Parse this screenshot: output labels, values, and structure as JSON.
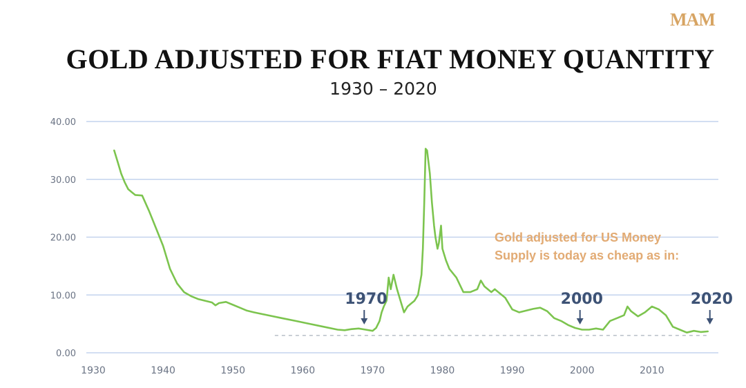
{
  "logo": {
    "text": "MAM"
  },
  "colors": {
    "line": "#7cc44e",
    "grid": "#c3d3ee",
    "axis_text": "#6a7384",
    "annotation": "#e2ab74",
    "marker": "#3d5275",
    "reference": "#b8bec8"
  },
  "chart_data": {
    "type": "line",
    "title": "GOLD ADJUSTED FOR FIAT MONEY QUANTITY",
    "subtitle": "1930 – 2020",
    "xlabel": "",
    "ylabel": "",
    "xlim": [
      1929,
      2019.5
    ],
    "ylim": [
      0,
      40
    ],
    "grid": true,
    "legend": "none",
    "x_ticks": [
      1930,
      1940,
      1950,
      1960,
      1970,
      1980,
      1990,
      2000,
      2010
    ],
    "y_ticks": [
      0,
      10,
      20,
      30,
      40
    ],
    "y_tick_labels": [
      "0.00",
      "10.00",
      "20.00",
      "30.00",
      "40.00"
    ],
    "series": [
      {
        "name": "",
        "x": [
          1933.0,
          1933.5,
          1934.0,
          1934.5,
          1935.0,
          1935.5,
          1936.0,
          1937.0,
          1938.0,
          1939.0,
          1940.0,
          1941.0,
          1942.0,
          1943.0,
          1944.0,
          1945.0,
          1946.0,
          1947.0,
          1947.5,
          1948.0,
          1949.0,
          1950.0,
          1951.0,
          1952.0,
          1953.0,
          1955.0,
          1957.0,
          1959.0,
          1961.0,
          1963.0,
          1965.0,
          1966.0,
          1967.0,
          1968.0,
          1969.0,
          1970.0,
          1970.5,
          1971.0,
          1971.3,
          1971.6,
          1972.0,
          1972.3,
          1972.6,
          1973.0,
          1973.5,
          1974.0,
          1974.5,
          1975.0,
          1975.5,
          1976.0,
          1976.5,
          1977.0,
          1977.2,
          1977.4,
          1977.6,
          1977.8,
          1978.0,
          1978.2,
          1978.5,
          1978.8,
          1979.0,
          1979.3,
          1979.5,
          1979.8,
          1980.0,
          1980.5,
          1981.0,
          1982.0,
          1983.0,
          1984.0,
          1985.0,
          1985.5,
          1986.0,
          1987.0,
          1987.5,
          1988.0,
          1989.0,
          1990.0,
          1991.0,
          1992.0,
          1993.0,
          1994.0,
          1995.0,
          1996.0,
          1997.0,
          1998.0,
          1999.0,
          2000.0,
          2001.0,
          2002.0,
          2003.0,
          2004.0,
          2005.0,
          2006.0,
          2006.5,
          2007.0,
          2008.0,
          2009.0,
          2010.0,
          2011.0,
          2012.0,
          2013.0,
          2014.0,
          2015.0,
          2016.0,
          2017.0,
          2018.0
        ],
        "values": [
          35.0,
          33.0,
          31.0,
          29.5,
          28.3,
          27.8,
          27.3,
          27.2,
          24.5,
          21.5,
          18.5,
          14.5,
          12.0,
          10.5,
          9.8,
          9.3,
          9.0,
          8.7,
          8.2,
          8.6,
          8.8,
          8.3,
          7.8,
          7.3,
          7.0,
          6.5,
          6.0,
          5.5,
          5.0,
          4.5,
          4.0,
          3.9,
          4.1,
          4.2,
          4.0,
          3.8,
          4.3,
          5.5,
          7.0,
          8.0,
          9.0,
          13.0,
          11.0,
          13.5,
          11.0,
          9.0,
          7.0,
          8.0,
          8.5,
          9.0,
          10.0,
          13.5,
          18.0,
          26.0,
          35.3,
          35.0,
          33.0,
          31.0,
          26.0,
          22.0,
          20.0,
          18.0,
          19.0,
          22.0,
          18.0,
          16.0,
          14.5,
          13.0,
          10.5,
          10.5,
          11.0,
          12.5,
          11.5,
          10.5,
          11.0,
          10.5,
          9.5,
          7.5,
          7.0,
          7.3,
          7.6,
          7.8,
          7.2,
          6.0,
          5.5,
          4.8,
          4.3,
          4.0,
          4.0,
          4.2,
          4.0,
          5.5,
          6.0,
          6.5,
          8.0,
          7.2,
          6.3,
          7.0,
          8.0,
          7.5,
          6.5,
          4.5,
          4.0,
          3.5,
          3.8,
          3.6,
          3.7
        ]
      }
    ],
    "reference_line": {
      "y": 3.0,
      "x_from": 1956,
      "x_to": 2018,
      "style": "dashed"
    },
    "annotations": [
      {
        "text": "Gold adjusted for US Money",
        "anchor_x": 1993
      },
      {
        "text": "Supply is today as cheap as in:",
        "anchor_x": 1993
      }
    ],
    "markers": [
      {
        "label": "1970",
        "x": 1968.8
      },
      {
        "label": "2000",
        "x": 1999.7
      },
      {
        "label": "2020",
        "x": 2018.3
      }
    ]
  }
}
